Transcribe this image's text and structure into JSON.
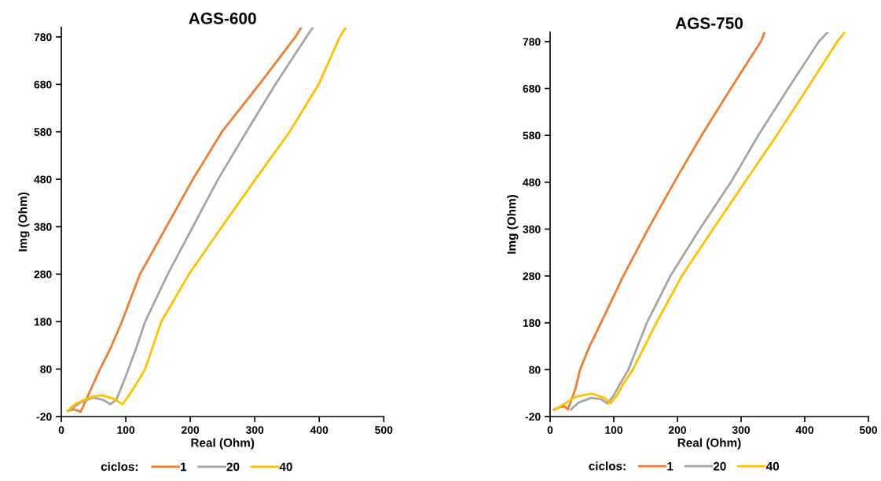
{
  "chart_data": [
    {
      "type": "line",
      "title": "AGS-600",
      "xlabel": "Real (Ohm)",
      "ylabel": "Img (Ohm)",
      "legend_title": "ciclos:",
      "legend": "bottom",
      "grid": false,
      "marker": "none",
      "line_style": "solid",
      "xlim": [
        0,
        500
      ],
      "xticks": [
        0,
        100,
        200,
        300,
        400,
        500
      ],
      "ylim": [
        -20,
        800
      ],
      "yticks": [
        -20,
        80,
        180,
        280,
        380,
        480,
        580,
        680,
        780
      ],
      "series": [
        {
          "name": "1",
          "color": "#ed7d31",
          "x": [
            10,
            20,
            30,
            40,
            50,
            60,
            75,
            94,
            122,
            163,
            204,
            249,
            307,
            363,
            372
          ],
          "values": [
            -8,
            -5,
            -10,
            20,
            50,
            80,
            120,
            180,
            280,
            380,
            480,
            580,
            680,
            780,
            800
          ]
        },
        {
          "name": "20",
          "color": "#a5a5a5",
          "x": [
            10,
            20,
            30,
            49,
            65,
            76,
            85,
            98,
            104,
            115,
            130,
            165,
            204,
            243,
            287,
            332,
            380,
            390
          ],
          "values": [
            -8,
            0,
            10,
            20,
            15,
            6,
            15,
            58,
            80,
            120,
            180,
            280,
            380,
            480,
            580,
            680,
            780,
            800
          ]
        },
        {
          "name": "40",
          "color": "#ffc000",
          "x": [
            10,
            20,
            35,
            50,
            63,
            80,
            95,
            105,
            115,
            130,
            155,
            198,
            249,
            301,
            354,
            399,
            432,
            441
          ],
          "values": [
            -8,
            5,
            15,
            22,
            25,
            18,
            6,
            25,
            46,
            80,
            180,
            280,
            380,
            480,
            580,
            680,
            780,
            800
          ]
        }
      ]
    },
    {
      "type": "line",
      "title": "AGS-750",
      "xlabel": "Real (Ohm)",
      "ylabel": "Img (Ohm)",
      "legend_title": "ciclos:",
      "legend": "bottom",
      "grid": false,
      "marker": "none",
      "line_style": "solid",
      "xlim": [
        0,
        500
      ],
      "xticks": [
        0,
        100,
        200,
        300,
        400,
        500
      ],
      "ylim": [
        -20,
        800
      ],
      "yticks": [
        -20,
        80,
        180,
        280,
        380,
        480,
        580,
        680,
        780
      ],
      "series": [
        {
          "name": "1",
          "color": "#ed7d31",
          "x": [
            6,
            15,
            22,
            28,
            40,
            47,
            62,
            80,
            115,
            154,
            195,
            238,
            284,
            331,
            337
          ],
          "values": [
            -5,
            0,
            2,
            -5,
            40,
            80,
            130,
            180,
            280,
            380,
            480,
            580,
            680,
            780,
            800
          ]
        },
        {
          "name": "20",
          "color": "#a5a5a5",
          "x": [
            33,
            45,
            65,
            80,
            90,
            100,
            110,
            123,
            152,
            189,
            235,
            284,
            327,
            374,
            422,
            436
          ],
          "values": [
            -5,
            10,
            20,
            17,
            8,
            25,
            50,
            80,
            180,
            280,
            380,
            480,
            580,
            680,
            780,
            800
          ]
        },
        {
          "name": "40",
          "color": "#ffc000",
          "x": [
            8,
            20,
            40,
            65,
            85,
            95,
            105,
            115,
            130,
            167,
            207,
            256,
            306,
            356,
            404,
            451,
            463
          ],
          "values": [
            -5,
            5,
            22,
            29,
            20,
            8,
            25,
            50,
            80,
            180,
            280,
            380,
            480,
            580,
            680,
            780,
            800
          ]
        }
      ]
    }
  ]
}
